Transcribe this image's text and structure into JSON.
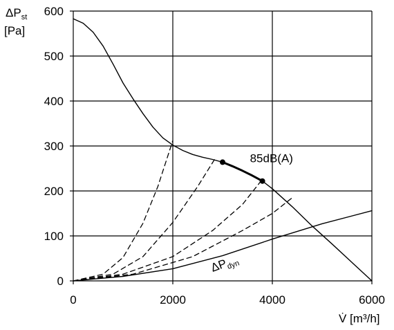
{
  "chart_data": {
    "type": "line",
    "x_axis": {
      "label": "V̇ [m³/h]",
      "range": [
        0,
        6000
      ],
      "ticks": [
        "0",
        "2000",
        "4000",
        "6000"
      ]
    },
    "y_axis": {
      "label_main": "ΔP",
      "label_sub": "st",
      "label_unit": "[Pa]",
      "range": [
        0,
        600
      ],
      "ticks": [
        "0",
        "100",
        "200",
        "300",
        "400",
        "500",
        "600"
      ]
    },
    "grid": true,
    "series": [
      {
        "style": "solid",
        "points": [
          [
            0,
            583
          ],
          [
            200,
            573
          ],
          [
            400,
            553
          ],
          [
            600,
            522
          ],
          [
            800,
            482
          ],
          [
            1000,
            440
          ],
          [
            1200,
            405
          ],
          [
            1400,
            372
          ],
          [
            1600,
            342
          ],
          [
            1800,
            318
          ],
          [
            2000,
            302
          ],
          [
            2200,
            290
          ],
          [
            2400,
            281
          ],
          [
            2600,
            275
          ],
          [
            2800,
            270
          ],
          [
            3000,
            264
          ],
          [
            3200,
            255
          ],
          [
            3400,
            245
          ],
          [
            3600,
            234
          ],
          [
            3800,
            222
          ],
          [
            4000,
            205
          ],
          [
            4400,
            165
          ],
          [
            4800,
            122
          ],
          [
            5200,
            82
          ],
          [
            5600,
            41
          ],
          [
            6000,
            0
          ]
        ]
      },
      {
        "style": "solid-bold",
        "points": [
          [
            3000,
            264
          ],
          [
            3200,
            255
          ],
          [
            3400,
            245
          ],
          [
            3600,
            234
          ],
          [
            3800,
            222
          ]
        ]
      },
      {
        "style": "solid",
        "points": [
          [
            0,
            0
          ],
          [
            1000,
            10
          ],
          [
            2000,
            27
          ],
          [
            3000,
            56
          ],
          [
            4000,
            93
          ],
          [
            5000,
            127
          ],
          [
            6000,
            156
          ]
        ]
      },
      {
        "style": "dashed",
        "points": [
          [
            0,
            0
          ],
          [
            600,
            15
          ],
          [
            1000,
            52
          ],
          [
            1400,
            128
          ],
          [
            1700,
            210
          ],
          [
            2000,
            312
          ]
        ]
      },
      {
        "style": "dashed",
        "points": [
          [
            0,
            0
          ],
          [
            800,
            15
          ],
          [
            1400,
            54
          ],
          [
            2000,
            130
          ],
          [
            2500,
            210
          ],
          [
            2850,
            272
          ]
        ]
      },
      {
        "style": "dashed",
        "points": [
          [
            0,
            0
          ],
          [
            1000,
            15
          ],
          [
            2000,
            54
          ],
          [
            2800,
            112
          ],
          [
            3400,
            170
          ],
          [
            3800,
            226
          ]
        ]
      },
      {
        "style": "dashed",
        "points": [
          [
            0,
            0
          ],
          [
            1200,
            15
          ],
          [
            2400,
            54
          ],
          [
            3400,
            112
          ],
          [
            4000,
            150
          ],
          [
            4400,
            185
          ]
        ]
      }
    ],
    "markers": [
      [
        3000,
        264
      ],
      [
        3800,
        222
      ]
    ],
    "annotations": [
      {
        "text": "85dB(A)",
        "x": 3550,
        "y": 264
      },
      {
        "text_main": "ΔP",
        "text_sub": "dyn",
        "x": 2800,
        "y": 20,
        "rotate": -20
      }
    ]
  }
}
